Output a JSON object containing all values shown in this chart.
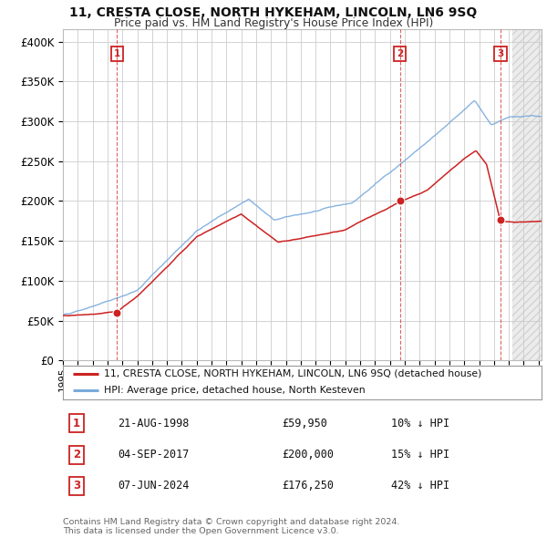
{
  "title": "11, CRESTA CLOSE, NORTH HYKEHAM, LINCOLN, LN6 9SQ",
  "subtitle": "Price paid vs. HM Land Registry's House Price Index (HPI)",
  "xlim_start": 1995.0,
  "xlim_end": 2027.2,
  "ylim_min": 0,
  "ylim_max": 415000,
  "yticks": [
    0,
    50000,
    100000,
    150000,
    200000,
    250000,
    300000,
    350000,
    400000
  ],
  "ytick_labels": [
    "£0",
    "£50K",
    "£100K",
    "£150K",
    "£200K",
    "£250K",
    "£300K",
    "£350K",
    "£400K"
  ],
  "xticks": [
    1995,
    1996,
    1997,
    1998,
    1999,
    2000,
    2001,
    2002,
    2003,
    2004,
    2005,
    2006,
    2007,
    2008,
    2009,
    2010,
    2011,
    2012,
    2013,
    2014,
    2015,
    2016,
    2017,
    2018,
    2019,
    2020,
    2021,
    2022,
    2023,
    2024,
    2025,
    2026,
    2027
  ],
  "hpi_color": "#7aabdc",
  "price_color": "#cc2222",
  "grid_color": "#cccccc",
  "shade_start": 2025.25,
  "legend_label_price": "11, CRESTA CLOSE, NORTH HYKEHAM, LINCOLN, LN6 9SQ (detached house)",
  "legend_label_hpi": "HPI: Average price, detached house, North Kesteven",
  "sales": [
    {
      "num": "1",
      "year": 1998.646,
      "price": 59950
    },
    {
      "num": "2",
      "year": 2017.672,
      "price": 200000
    },
    {
      "num": "3",
      "year": 2024.438,
      "price": 176250
    }
  ],
  "footnote": "Contains HM Land Registry data © Crown copyright and database right 2024.\nThis data is licensed under the Open Government Licence v3.0.",
  "table_rows": [
    {
      "num": "1",
      "date": "21-AUG-1998",
      "price": "£59,950",
      "hpi_rel": "10% ↓ HPI"
    },
    {
      "num": "2",
      "date": "04-SEP-2017",
      "price": "£200,000",
      "hpi_rel": "15% ↓ HPI"
    },
    {
      "num": "3",
      "date": "07-JUN-2024",
      "price": "£176,250",
      "hpi_rel": "42% ↓ HPI"
    }
  ]
}
